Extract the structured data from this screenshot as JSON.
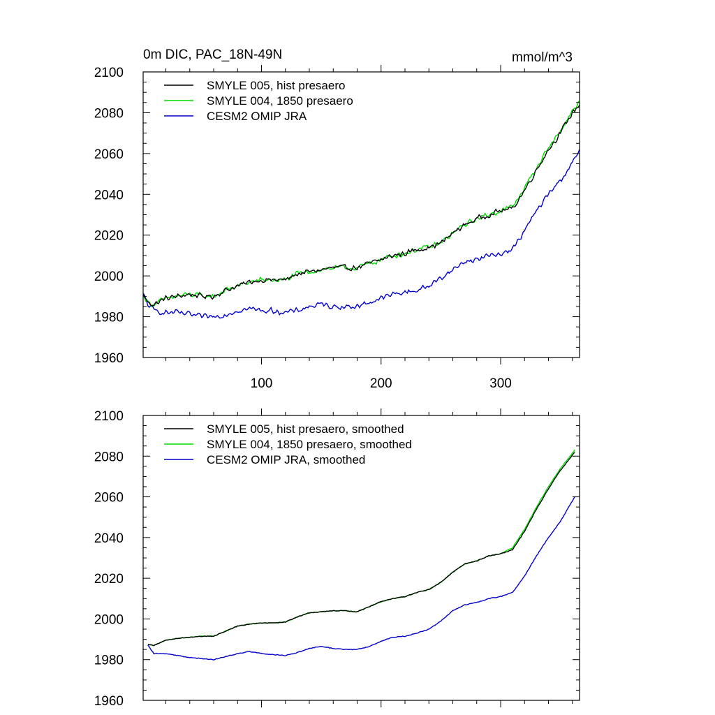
{
  "header": {
    "title": "0m DIC, PAC_18N-49N",
    "units": "mmol/m^3"
  },
  "colors": {
    "hist": "#000000",
    "fixed1850": "#00dd00",
    "omip": "#0000cc"
  },
  "chart_data": [
    {
      "type": "line",
      "title": "0m DIC, PAC_18N-49N",
      "units": "mmol/m^3",
      "xlabel": "",
      "ylabel": "",
      "xlim": [
        1,
        366
      ],
      "ylim": [
        1960,
        2100
      ],
      "xticks": [
        100,
        200,
        300
      ],
      "xtick_labels": [
        "100",
        "200",
        "300"
      ],
      "yticks": [
        1960,
        1980,
        2000,
        2020,
        2040,
        2060,
        2080,
        2100
      ],
      "ytick_labels": [
        "1960",
        "1980",
        "2000",
        "2020",
        "2040",
        "2060",
        "2080",
        "2100"
      ],
      "legend_position": "top-left",
      "series": [
        {
          "name": "SMYLE 005, hist presaero",
          "color": "#000000",
          "x": [
            1,
            5,
            10,
            20,
            30,
            40,
            50,
            60,
            70,
            80,
            90,
            100,
            110,
            120,
            130,
            140,
            150,
            160,
            170,
            180,
            190,
            200,
            210,
            220,
            230,
            240,
            250,
            260,
            270,
            280,
            290,
            300,
            310,
            320,
            330,
            340,
            350,
            360,
            366
          ],
          "y": [
            1991,
            1987,
            1986,
            1989,
            1990,
            1991,
            1990,
            1990,
            1993,
            1995,
            1997,
            1998,
            1998,
            1998,
            2001,
            2002,
            2003,
            2004,
            2004,
            2004,
            2006,
            2008,
            2010,
            2011,
            2013,
            2014,
            2016,
            2021,
            2025,
            2028,
            2030,
            2032,
            2033,
            2042,
            2052,
            2062,
            2070,
            2080,
            2084
          ]
        },
        {
          "name": "SMYLE 004, 1850 presaero",
          "color": "#00dd00",
          "x": [
            1,
            5,
            10,
            20,
            30,
            40,
            50,
            60,
            70,
            80,
            90,
            100,
            110,
            120,
            130,
            140,
            150,
            160,
            170,
            180,
            190,
            200,
            210,
            220,
            230,
            240,
            250,
            260,
            270,
            280,
            290,
            300,
            310,
            320,
            330,
            340,
            350,
            360,
            366
          ],
          "y": [
            1991,
            1987,
            1986,
            1989,
            1990,
            1991,
            1990,
            1990,
            1993,
            1995,
            1997,
            1998,
            1998,
            1998,
            2001,
            2002,
            2003,
            2004,
            2004,
            2004,
            2006,
            2008,
            2010,
            2011,
            2013,
            2014,
            2016,
            2021,
            2025,
            2028,
            2030,
            2032,
            2034,
            2043,
            2053,
            2063,
            2071,
            2081,
            2085
          ]
        },
        {
          "name": "CESM2 OMIP JRA",
          "color": "#0000cc",
          "x": [
            1,
            5,
            10,
            20,
            30,
            40,
            50,
            60,
            70,
            80,
            90,
            100,
            110,
            120,
            130,
            140,
            150,
            160,
            170,
            180,
            190,
            200,
            210,
            220,
            230,
            240,
            250,
            260,
            270,
            280,
            290,
            300,
            310,
            320,
            330,
            340,
            350,
            360,
            366
          ],
          "y": [
            1991,
            1986,
            1983,
            1982,
            1982,
            1981,
            1980,
            1980,
            1981,
            1983,
            1984,
            1983,
            1983,
            1982,
            1983,
            1985,
            1986,
            1985,
            1985,
            1985,
            1987,
            1989,
            1991,
            1992,
            1993,
            1995,
            1999,
            2003,
            2007,
            2008,
            2010,
            2011,
            2013,
            2022,
            2032,
            2040,
            2047,
            2055,
            2062
          ]
        }
      ]
    },
    {
      "type": "line",
      "title": "",
      "xlabel": "",
      "ylabel": "",
      "xlim": [
        1,
        366
      ],
      "ylim": [
        1960,
        2100
      ],
      "xticks": [
        100,
        200,
        300
      ],
      "xtick_labels": [],
      "yticks": [
        1960,
        1980,
        2000,
        2020,
        2040,
        2060,
        2080,
        2100
      ],
      "ytick_labels": [
        "1960",
        "1980",
        "2000",
        "2020",
        "2040",
        "2060",
        "2080",
        "2100"
      ],
      "legend_position": "top-left",
      "series": [
        {
          "name": "SMYLE 005, hist presaero, smoothed",
          "color": "#000000",
          "x": [
            5,
            10,
            20,
            30,
            40,
            50,
            60,
            70,
            80,
            90,
            100,
            110,
            120,
            130,
            140,
            150,
            160,
            170,
            180,
            190,
            200,
            210,
            220,
            230,
            240,
            250,
            260,
            270,
            280,
            290,
            300,
            310,
            320,
            330,
            340,
            350,
            362
          ],
          "y": [
            1987.5,
            1987,
            1989.5,
            1990.5,
            1991,
            1991.5,
            1991.5,
            1994,
            1996.5,
            1997.5,
            1998,
            1998,
            1998.5,
            2001,
            2003,
            2003.5,
            2004,
            2004,
            2003.5,
            2006,
            2008.5,
            2010,
            2011,
            2013,
            2014.5,
            2018,
            2023,
            2027,
            2028.5,
            2031,
            2032,
            2034,
            2043,
            2054,
            2064,
            2073,
            2082
          ]
        },
        {
          "name": "SMYLE 004, 1850 presaero, smoothed",
          "color": "#00dd00",
          "x": [
            5,
            10,
            20,
            30,
            40,
            50,
            60,
            70,
            80,
            90,
            100,
            110,
            120,
            130,
            140,
            150,
            160,
            170,
            180,
            190,
            200,
            210,
            220,
            230,
            240,
            250,
            260,
            270,
            280,
            290,
            300,
            310,
            320,
            330,
            340,
            350,
            362
          ],
          "y": [
            1987.5,
            1987,
            1989.5,
            1990.5,
            1991,
            1991.5,
            1991.5,
            1994,
            1996.5,
            1997.5,
            1998,
            1998,
            1998.5,
            2001,
            2003,
            2003.5,
            2004,
            2004,
            2003.5,
            2006,
            2008.5,
            2010,
            2011,
            2013,
            2014.5,
            2018,
            2023,
            2027,
            2028.5,
            2031,
            2032,
            2035,
            2044,
            2055,
            2065,
            2074,
            2083
          ]
        },
        {
          "name": "CESM2 OMIP JRA, smoothed",
          "color": "#0000cc",
          "x": [
            5,
            10,
            20,
            30,
            40,
            50,
            60,
            70,
            80,
            90,
            100,
            110,
            120,
            130,
            140,
            150,
            160,
            170,
            180,
            190,
            200,
            210,
            220,
            230,
            240,
            250,
            260,
            270,
            280,
            290,
            300,
            310,
            320,
            330,
            340,
            350,
            362
          ],
          "y": [
            1987,
            1983,
            1983,
            1982,
            1981,
            1980.5,
            1980,
            1981.5,
            1983,
            1984,
            1983,
            1982.5,
            1982,
            1983.5,
            1985.5,
            1986.5,
            1985.5,
            1985,
            1985,
            1986.5,
            1989,
            1991,
            1991.5,
            1993,
            1995,
            1999,
            2004,
            2007,
            2008,
            2010,
            2011,
            2013,
            2021,
            2031,
            2040,
            2048,
            2060
          ]
        }
      ]
    }
  ]
}
